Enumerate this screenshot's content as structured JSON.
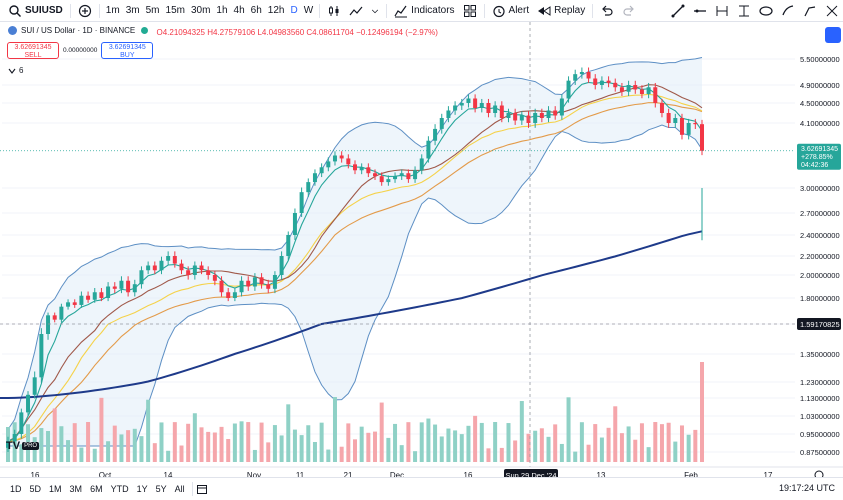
{
  "toolbar": {
    "symbol": "SUIUSD",
    "timeframes": [
      "1m",
      "3m",
      "5m",
      "15m",
      "30m",
      "1h",
      "4h",
      "6h",
      "12h",
      "D",
      "W"
    ],
    "active_timeframe": "D",
    "indicators_label": "Indicators",
    "alert_label": "Alert",
    "replay_label": "Replay"
  },
  "legend": {
    "title": "SUI / US Dollar · 1D · BINANCE",
    "ohlc": "O4.21094325 H4.27579106 L4.04983560 C4.08611704 −0.12496194 (−2.97%)",
    "sell_price": "3.62691345",
    "sell_label": "SELL",
    "spread": "0.00000000",
    "buy_price": "3.62691345",
    "buy_label": "BUY",
    "indicator_count": "6"
  },
  "price_axis": {
    "ticks": [
      "5.50000000",
      "4.90000000",
      "4.50000000",
      "4.10000000",
      "3.00000000",
      "2.70000000",
      "2.40000000",
      "2.20000000",
      "2.00000000",
      "1.80000000",
      "1.50000000",
      "1.35000000",
      "1.23000000",
      "1.13000000",
      "1.03000000",
      "0.95000000",
      "0.87500000"
    ],
    "last_price_label": "3.62691345",
    "last_change_label": "+278.85%",
    "countdown_label": "04:42:36",
    "crosshair_label": "1.59170825"
  },
  "time_axis": {
    "ticks": [
      "16",
      "Oct",
      "14",
      "Nov",
      "11",
      "21",
      "Dec",
      "16",
      "13",
      "Feb",
      "17"
    ],
    "crosshair_label": "Sun 29 Dec '24"
  },
  "logo": {
    "mark": "TV",
    "badge": "PRO"
  },
  "bottombar": {
    "ranges": [
      "1D",
      "5D",
      "1M",
      "3M",
      "6M",
      "YTD",
      "1Y",
      "5Y",
      "All"
    ],
    "clock": "19:17:24 UTC"
  },
  "colors": {
    "up": "#26a69a",
    "down": "#f23645",
    "bollinger": "#5d8fc4",
    "ma_long": "#1e3a8a",
    "ma_short": "#26a69a",
    "ema_yellow": "#f5d24a",
    "ema_orange": "#e39b4a",
    "ma_brown": "#a0594a"
  },
  "chart_data": {
    "type": "candlestick",
    "indicator_series": [
      "Bollinger Bands",
      "moving averages",
      "Volume"
    ],
    "closes": [
      0.92,
      0.95,
      1.05,
      1.15,
      1.25,
      1.45,
      1.6,
      1.55,
      1.7,
      1.75,
      1.72,
      1.82,
      1.78,
      1.85,
      1.8,
      1.9,
      1.88,
      1.95,
      1.85,
      1.92,
      2.05,
      2.1,
      2.05,
      2.15,
      2.2,
      2.12,
      2.05,
      2.0,
      2.1,
      2.05,
      2.0,
      1.95,
      1.85,
      1.8,
      1.85,
      1.95,
      1.9,
      1.98,
      1.92,
      1.88,
      2.0,
      2.2,
      2.4,
      2.7,
      2.95,
      3.1,
      3.25,
      3.35,
      3.45,
      3.55,
      3.5,
      3.4,
      3.3,
      3.35,
      3.25,
      3.2,
      3.1,
      3.15,
      3.2,
      3.25,
      3.15,
      3.3,
      3.5,
      3.8,
      4.0,
      4.2,
      4.35,
      4.45,
      4.5,
      4.6,
      4.4,
      4.5,
      4.3,
      4.45,
      4.2,
      4.3,
      4.15,
      4.25,
      4.1,
      4.3,
      4.2,
      4.35,
      4.25,
      4.6,
      5.0,
      5.15,
      5.2,
      5.05,
      4.9,
      5.0,
      4.95,
      4.85,
      4.75,
      4.9,
      4.8,
      4.7,
      4.85,
      4.5,
      4.3,
      4.1,
      4.2,
      3.9,
      4.1,
      4.08,
      3.63
    ],
    "ma_long_start": 1.13,
    "ma_long_end": 2.45,
    "volume_last_spike": true
  }
}
